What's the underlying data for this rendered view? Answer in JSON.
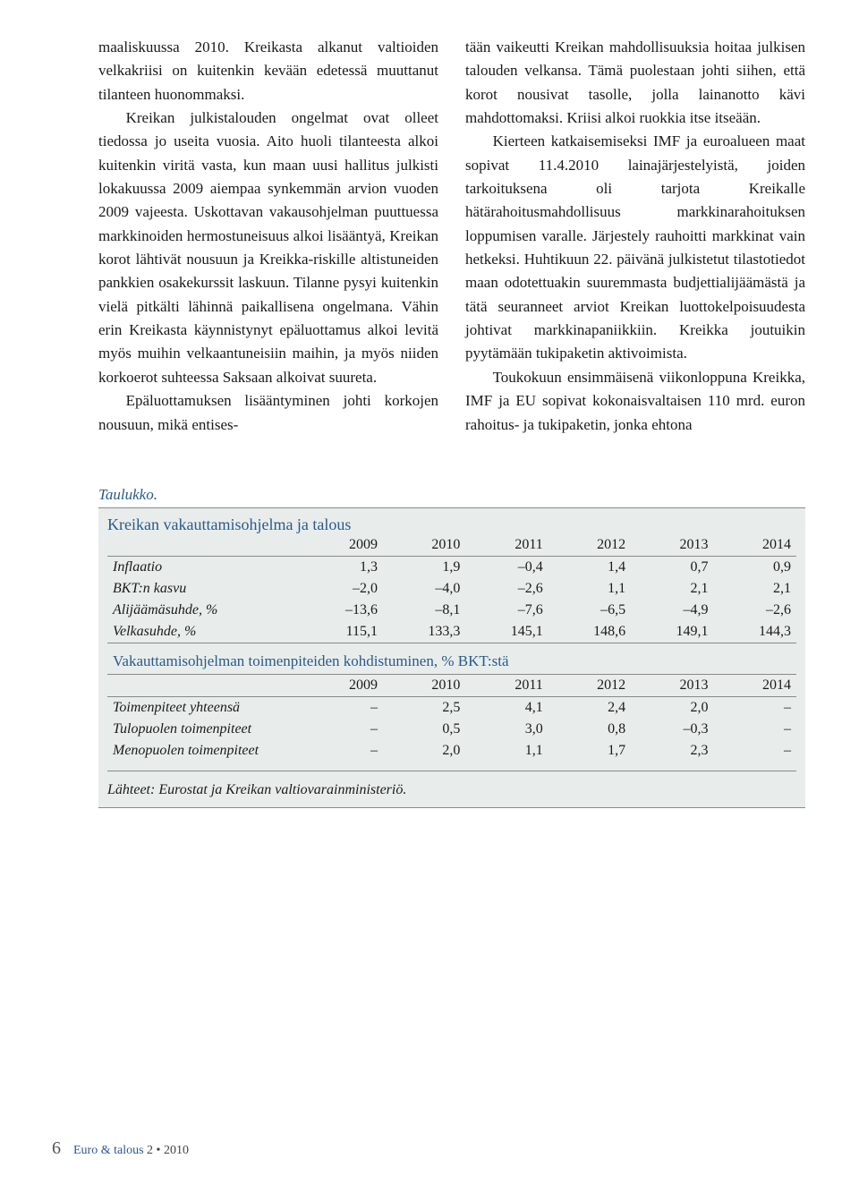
{
  "colors": {
    "text": "#1a1a1a",
    "accent": "#2a5a8a",
    "table_bg": "#e8edec",
    "rule": "#888888",
    "page_bg": "#ffffff"
  },
  "body": {
    "left": {
      "p1": "maaliskuussa 2010. Kreikasta alkanut valtioiden velkakriisi on kuitenkin kevään edetessä muuttanut tilanteen huonommaksi.",
      "p2": "Kreikan julkistalouden ongelmat ovat olleet tiedossa jo useita vuosia. Aito huoli tilanteesta alkoi kuitenkin viritä vasta, kun maan uusi hallitus julkisti lokakuussa 2009 aiempaa synkemmän arvion vuoden 2009 vajeesta. Uskottavan vakausohjelman puuttuessa markkinoiden hermostuneisuus alkoi lisääntyä, Kreikan korot lähtivät nousuun ja Kreikka-riskille altistuneiden pankkien osakekurssit laskuun. Tilanne pysyi kuitenkin vielä pitkälti lähinnä paikallisena ongelmana. Vähin erin Kreikasta käynnistynyt epäluottamus alkoi levitä myös muihin velkaantuneisiin maihin, ja myös niiden korkoerot suhteessa Saksaan alkoivat suureta.",
      "p3": "Epäluottamuksen lisääntyminen johti korkojen nousuun, mikä entises-"
    },
    "right": {
      "p1": "tään vaikeutti Kreikan mahdollisuuksia hoitaa julkisen talouden velkansa. Tämä puolestaan johti siihen, että korot nousivat tasolle, jolla lainanotto kävi mahdottomaksi. Kriisi alkoi ruokkia itse itseään.",
      "p2": "Kierteen katkaisemiseksi IMF ja euroalueen maat sopivat 11.4.2010 lainajärjestelyistä, joiden tarkoituksena oli tarjota Kreikalle hätärahoitusmahdollisuus markkinarahoituksen loppumisen varalle. Järjestely rauhoitti markkinat vain hetkeksi. Huhtikuun 22. päivänä julkistetut tilastotiedot maan odotettuakin suuremmasta budjettialijäämästä ja tätä seuranneet arviot Kreikan luottokelpoisuudesta johtivat markkinapaniikkiin. Kreikka joutuikin pyytämään tukipaketin aktivoimista.",
      "p3": "Toukokuun ensimmäisenä viikonloppuna Kreikka, IMF ja EU sopivat kokonaisvaltaisen 110 mrd. euron rahoitus- ja tukipaketin, jonka ehtona"
    }
  },
  "table": {
    "label": "Taulukko.",
    "title": "Kreikan vakauttamisohjelma ja talous",
    "years": [
      "2009",
      "2010",
      "2011",
      "2012",
      "2013",
      "2014"
    ],
    "rows1": [
      {
        "label": "Inflaatio",
        "v": [
          "1,3",
          "1,9",
          "–0,4",
          "1,4",
          "0,7",
          "0,9"
        ]
      },
      {
        "label": "BKT:n kasvu",
        "v": [
          "–2,0",
          "–4,0",
          "–2,6",
          "1,1",
          "2,1",
          "2,1"
        ]
      },
      {
        "label": "Alijäämäsuhde, %",
        "v": [
          "–13,6",
          "–8,1",
          "–7,6",
          "–6,5",
          "–4,9",
          "–2,6"
        ]
      },
      {
        "label": "Velkasuhde, %",
        "v": [
          "115,1",
          "133,3",
          "145,1",
          "148,6",
          "149,1",
          "144,3"
        ]
      }
    ],
    "subheading": "Vakauttamisohjelman toimenpiteiden kohdistuminen, % BKT:stä",
    "rows2": [
      {
        "label": "Toimenpiteet yhteensä",
        "v": [
          "–",
          "2,5",
          "4,1",
          "2,4",
          "2,0",
          "–"
        ]
      },
      {
        "label": "Tulopuolen toimenpiteet",
        "v": [
          "–",
          "0,5",
          "3,0",
          "0,8",
          "–0,3",
          "–"
        ]
      },
      {
        "label": "Menopuolen toimenpiteet",
        "v": [
          "–",
          "2,0",
          "1,1",
          "1,7",
          "2,3",
          "–"
        ]
      }
    ],
    "source": "Lähteet: Eurostat ja Kreikan valtiovarainministeriö."
  },
  "footer": {
    "page": "6",
    "publication": "Euro & talous",
    "issue": "2 • 2010"
  }
}
